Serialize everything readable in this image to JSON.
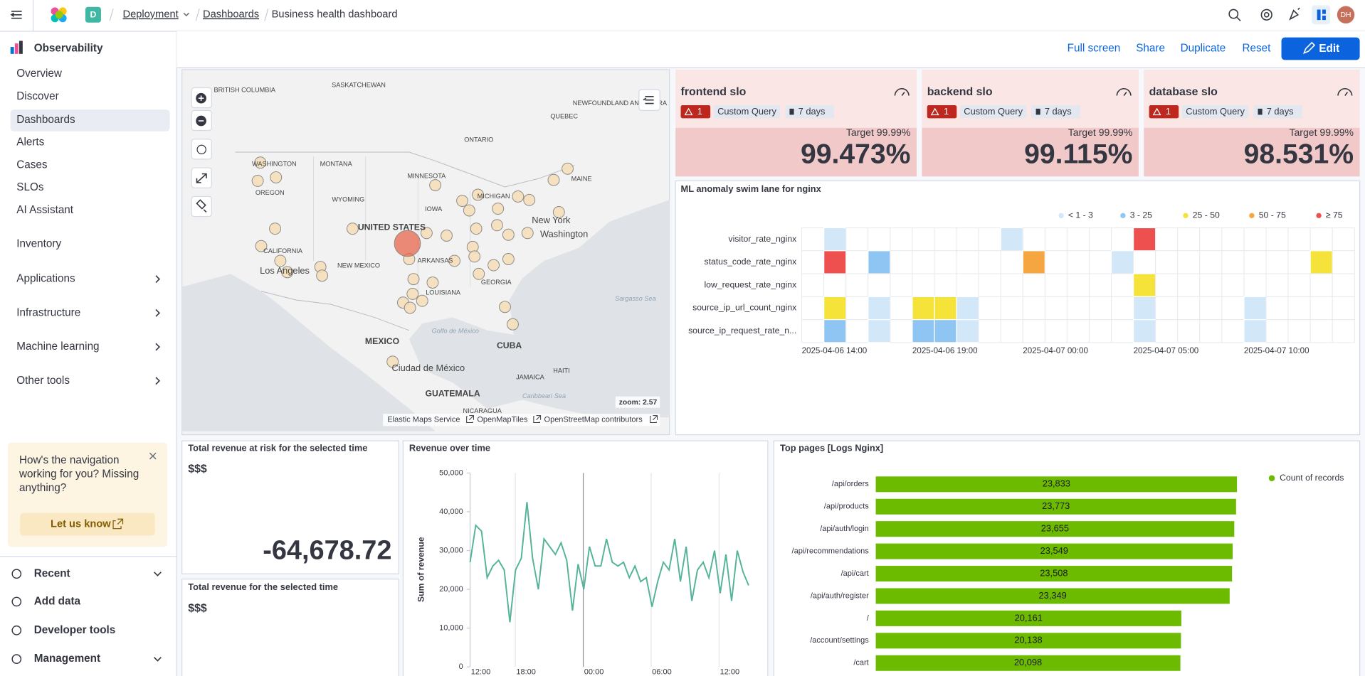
{
  "header": {
    "space_badge": "D",
    "breadcrumbs": [
      "Deployment",
      "Dashboards",
      "Business health dashboard"
    ],
    "avatar": "DH"
  },
  "sidebar": {
    "title": "Observability",
    "items": [
      "Overview",
      "Discover",
      "Dashboards",
      "Alerts",
      "Cases",
      "SLOs",
      "AI Assistant"
    ],
    "groups": [
      "Inventory",
      "Applications",
      "Infrastructure",
      "Machine learning",
      "Other tools"
    ],
    "callout": {
      "text": "How's the navigation working for you? Missing anything?",
      "button": "Let us know"
    },
    "footer": [
      "Recent",
      "Add data",
      "Developer tools",
      "Management"
    ]
  },
  "toolbar": [
    "Full screen",
    "Share",
    "Duplicate",
    "Reset",
    "Edit"
  ],
  "map": {
    "labels": [
      "BRITISH COLUMBIA",
      "SASKATCHEWAN",
      "NEWFOUNDLAND AND LABRA",
      "QUEBEC",
      "ONTARIO",
      "WASHINGTON",
      "MONTANA",
      "MINNESOTA",
      "MAINE",
      "OREGON",
      "WYOMING",
      "MICHIGAN",
      "IOWA",
      "UNITED STATES",
      "New York",
      "Washington",
      "CALIFORNIA",
      "NEW MEXICO",
      "ARKANSAS",
      "Los Angeles",
      "GEORGIA",
      "LOUISIANA",
      "Sargasso Sea",
      "Golfo de México",
      "MEXICO",
      "CUBA",
      "Ciudad de México",
      "HAITI",
      "JAMAICA",
      "GUATEMALA",
      "Caribbean Sea",
      "NICARAGUA"
    ],
    "zoom": "zoom: 2.57",
    "attribution": [
      "Elastic Maps Service",
      "OpenMapTiles",
      "OpenStreetMap contributors"
    ]
  },
  "slo_cards": [
    {
      "name": "frontend slo",
      "alerts": 1,
      "query": "Custom Query",
      "window": "7 days",
      "target": "Target 99.99%",
      "value": "99.473%"
    },
    {
      "name": "backend slo",
      "alerts": 1,
      "query": "Custom Query",
      "window": "7 days",
      "target": "Target 99.99%",
      "value": "99.115%"
    },
    {
      "name": "database slo",
      "alerts": 1,
      "query": "Custom Query",
      "window": "7 days",
      "target": "Target 99.99%",
      "value": "98.531%"
    }
  ],
  "swim_lane": {
    "title": "ML anomaly swim lane for nginx",
    "legend": [
      {
        "label": "< 1 - 3",
        "color": "#d2e7f8"
      },
      {
        "label": "3 - 25",
        "color": "#8ec5f2"
      },
      {
        "label": "25 - 50",
        "color": "#f5e339"
      },
      {
        "label": "50 - 75",
        "color": "#f5a640"
      },
      {
        "label": "≥ 75",
        "color": "#ee4f4f"
      }
    ],
    "rows": [
      {
        "name": "visitor_rate_nginx",
        "cells": [
          null,
          "#d2e7f8",
          null,
          null,
          null,
          null,
          null,
          null,
          null,
          "#d2e7f8",
          null,
          null,
          null,
          null,
          null,
          "#ee4f4f",
          null,
          null,
          null,
          null,
          null,
          null,
          null,
          null,
          null
        ]
      },
      {
        "name": "status_code_rate_nginx",
        "cells": [
          null,
          "#ee4f4f",
          null,
          "#8ec5f2",
          null,
          null,
          null,
          null,
          null,
          null,
          "#f5a640",
          null,
          null,
          null,
          "#d2e7f8",
          null,
          null,
          null,
          null,
          null,
          null,
          null,
          null,
          "#f5e339",
          null
        ]
      },
      {
        "name": "low_request_rate_nginx",
        "cells": [
          null,
          null,
          null,
          null,
          null,
          null,
          null,
          null,
          null,
          null,
          null,
          null,
          null,
          null,
          null,
          "#f5e339",
          null,
          null,
          null,
          null,
          null,
          null,
          null,
          null,
          null
        ]
      },
      {
        "name": "source_ip_url_count_nginx",
        "cells": [
          null,
          "#f5e339",
          null,
          "#d2e7f8",
          null,
          "#f5e339",
          "#f5e339",
          "#d2e7f8",
          null,
          null,
          null,
          null,
          null,
          null,
          null,
          "#d2e7f8",
          null,
          null,
          null,
          null,
          "#d2e7f8",
          null,
          null,
          null,
          null
        ]
      },
      {
        "name": "source_ip_request_rate_n...",
        "cells": [
          null,
          "#8ec5f2",
          null,
          "#d2e7f8",
          null,
          "#8ec5f2",
          "#8ec5f2",
          "#d2e7f8",
          null,
          null,
          null,
          null,
          null,
          null,
          null,
          "#d2e7f8",
          null,
          null,
          null,
          null,
          "#d2e7f8",
          null,
          null,
          null,
          null
        ]
      }
    ],
    "xticks": [
      "2025-04-06 14:00",
      "2025-04-06 19:00",
      "2025-04-07 00:00",
      "2025-04-07 05:00",
      "2025-04-07 10:00"
    ]
  },
  "stat_panels": [
    {
      "title": "Total revenue at risk for the selected time",
      "subtitle": "$$$",
      "value": "-64,678.72"
    },
    {
      "title": "Total revenue for the selected time",
      "subtitle": "$$$"
    }
  ],
  "revenue_chart": {
    "type": "line",
    "title": "Revenue over time",
    "y_label": "Sum of revenue",
    "color": "#54b399",
    "values": [
      27000,
      36500,
      35000,
      23000,
      26000,
      27500,
      25000,
      11500,
      25000,
      28000,
      42500,
      28000,
      20000,
      33000,
      31000,
      29000,
      32000,
      27500,
      14500,
      26500,
      20000,
      31000,
      26000,
      26000,
      33000,
      27000,
      26000,
      27000,
      23000,
      26000,
      22000,
      23000,
      15500,
      22000,
      27000,
      25000,
      33000,
      22000,
      31000,
      17000,
      25000,
      27000,
      23000,
      30000,
      19000,
      29000,
      17000,
      30000,
      24500,
      21000
    ],
    "ylim": [
      0,
      50000
    ],
    "yticks": [
      0,
      {
        "value": 10000,
        "label": "10,000"
      },
      {
        "value": 20000,
        "label": "20,000"
      },
      {
        "value": 30000,
        "label": "30,000"
      },
      {
        "value": 40000,
        "label": "40,000"
      },
      {
        "value": 50000,
        "label": "50,000"
      }
    ],
    "xtick_labels": [
      "12:00",
      "18:00",
      "00:00",
      "06:00",
      "12:00"
    ]
  },
  "top_pages": {
    "type": "bar",
    "title": "Top pages [Logs Nginx]",
    "series_name": "Count of records",
    "color": "#6dbb00",
    "categories": [
      "/api/orders",
      "/api/products",
      "/api/auth/login",
      "/api/recommendations",
      "/api/cart",
      "/api/auth/register",
      "/",
      "/account/settings",
      "/cart"
    ],
    "values": [
      23833,
      23773,
      23655,
      23549,
      23508,
      23349,
      20161,
      20138,
      20098
    ],
    "value_labels": [
      "23,833",
      "23,773",
      "23,655",
      "23,549",
      "23,508",
      "23,349",
      "20,161",
      "20,138",
      "20,098"
    ],
    "xlim": [
      0,
      25000
    ]
  }
}
